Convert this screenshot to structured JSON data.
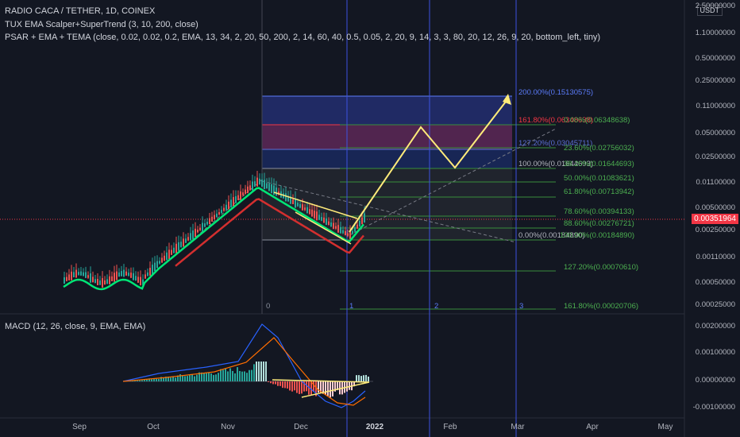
{
  "header": {
    "symbol_line": "RADIO CACA / TETHER, 1D, COINEX",
    "indicator1": "TUX EMA Scalper+SuperTrend (3, 10, 200, close)",
    "indicator2": "PSAR + EMA + TEMA (close, 0.02, 0.02, 0.2, EMA, 13, 34, 2, 20, 50, 200, 2, 14, 60, 40, 0.5, 0.05, 2, 20, 9, 14, 3, 3, 80, 20, 12, 26, 9, 20, bottom_left, tiny)"
  },
  "price_axis": {
    "currency": "USDT",
    "labels": [
      "2.50000000",
      "1.10000000",
      "0.50000000",
      "0.25000000",
      "0.11000000",
      "0.05000000",
      "0.02500000",
      "0.01100000",
      "0.00500000",
      "0.00250000",
      "0.00110000",
      "0.00050000",
      "0.00025000"
    ],
    "current_price": "0.00351964"
  },
  "macd": {
    "title": "MACD (12, 26, close, 9, EMA, EMA)",
    "axis_labels": [
      "0.00200000",
      "0.00100000",
      "0.00000000",
      "-0.00100000"
    ]
  },
  "time_axis": [
    "Sep",
    "Oct",
    "Nov",
    "Dec",
    "2022",
    "Feb",
    "Mar",
    "Apr",
    "May"
  ],
  "fib_extension_labels": {
    "l200": "200.00%(0.15130575)",
    "l1618": "161.80%(0.06348638)",
    "l1272": "127.20%(0.03045711)",
    "l100": "100.00%(0.01644693)",
    "l0": "0.00%(0.00184890)"
  },
  "fib_retracement_labels": [
    "0.00%(0.06348638)",
    "23.60%(0.02756032)",
    "38.20%(0.01644693)",
    "50.00%(0.01083621)",
    "61.80%(0.00713942)",
    "78.60%(0.00394133)",
    "88.60%(0.00276721)",
    "100.00%(0.00184890)",
    "127.20%(0.00070610)",
    "161.80%(0.00020706)"
  ],
  "time_zone_labels": [
    "0",
    "1",
    "2",
    "3"
  ],
  "colors": {
    "background": "#131722",
    "up": "#26a69a",
    "down": "#ef5350",
    "ema_green": "#00e676",
    "ema_red": "#d32f2f",
    "forecast": "#ffeb7a",
    "fib_blue": "#3b4fd6",
    "zone_line": "#3d52e0"
  }
}
